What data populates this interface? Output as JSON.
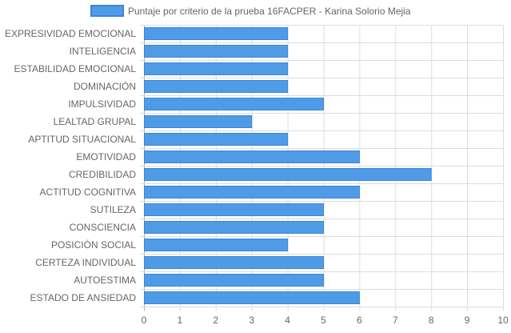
{
  "chart_data": {
    "type": "bar",
    "orientation": "horizontal",
    "categories": [
      "EXPRESIVIDAD EMOCIONAL",
      "INTELIGENCIA",
      "ESTABILIDAD EMOCIONAL",
      "DOMINACIÓN",
      "IMPULSIVIDAD",
      "LEALTAD GRUPAL",
      "APTITUD SITUACIONAL",
      "EMOTIVIDAD",
      "CREDIBILIDAD",
      "ACTITUD COGNITIVA",
      "SUTILEZA",
      "CONSCIENCIA",
      "POSICIÓN SOCIAL",
      "CERTEZA INDIVIDUAL",
      "AUTOESTIMA",
      "ESTADO DE ANSIEDAD"
    ],
    "series": [
      {
        "name": "Puntaje por criterio de la prueba 16FACPER - Karina Solorio Mejia",
        "values": [
          4,
          4,
          4,
          4,
          5,
          3,
          4,
          6,
          8,
          6,
          5,
          5,
          4,
          5,
          5,
          6
        ]
      }
    ],
    "xlim": [
      0,
      10
    ],
    "xticks": [
      "0",
      "1",
      "2",
      "3",
      "4",
      "5",
      "6",
      "7",
      "8",
      "9",
      "10"
    ],
    "grid": true,
    "legend_position": "top",
    "colors": {
      "bar_fill": "#4f9be8",
      "bar_border": "#3a86d6",
      "grid": "#dddddd",
      "text": "#666666"
    }
  }
}
